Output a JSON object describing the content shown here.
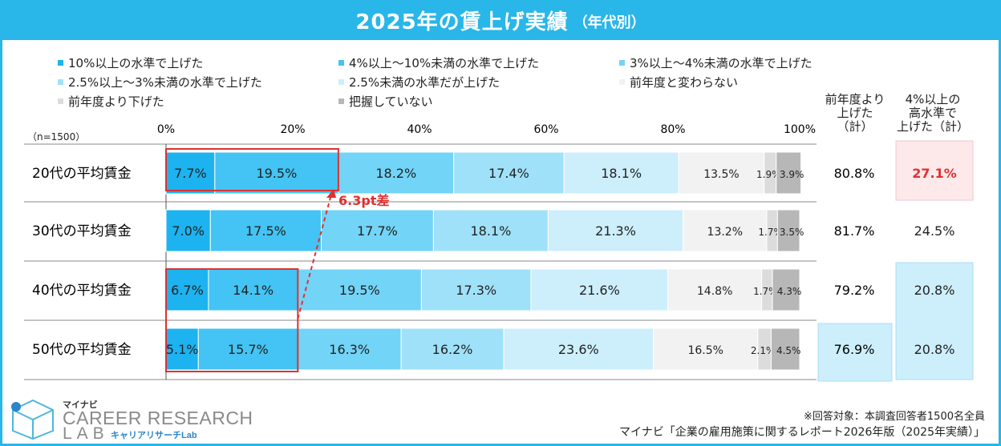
{
  "title": {
    "main": "2025年の賃上げ実績",
    "sub": "（年代別）"
  },
  "colors": {
    "accent": "#29b6e8",
    "seg": [
      "#1cb3f0",
      "#43c4f4",
      "#72d4f7",
      "#9fe1f9",
      "#cdeefb",
      "#f2f2f2",
      "#dcdcdc",
      "#b7b7b7"
    ],
    "highlight_red": "#e03030",
    "cell_pink": "#fde8ea",
    "cell_blue": "#cdeefb"
  },
  "legend": [
    "10%以上の水準で上げた",
    "4%以上～10%未満の水準で上げた",
    "3%以上～4%未満の水準で上げた",
    "2.5%以上～3%未満の水準で上げた",
    "2.5%未満の水準だが上げた",
    "前年度と変わらない",
    "前年度より下げた",
    "把握していない"
  ],
  "sample_label": "（n=1500）",
  "columns": {
    "raised_total": "前年度より上げた（計）",
    "raised_total_lines": [
      "前年度より",
      "上げた",
      "（計）"
    ],
    "high_total": "4%以上の高水準で上げた（計）",
    "high_total_lines": [
      "4%以上の",
      "高水準で",
      "上げた（計）"
    ]
  },
  "chart_data": {
    "type": "bar",
    "orientation": "horizontal-stacked-100",
    "title": "2025年の賃上げ実績（年代別）",
    "x_ticks": [
      "0%",
      "20%",
      "40%",
      "60%",
      "80%",
      "100%"
    ],
    "xlim": [
      0,
      100
    ],
    "categories": [
      "20代の平均賃金",
      "30代の平均賃金",
      "40代の平均賃金",
      "50代の平均賃金"
    ],
    "series": [
      {
        "name": "10%以上の水準で上げた",
        "values": [
          7.7,
          7.0,
          6.7,
          5.1
        ]
      },
      {
        "name": "4%以上～10%未満の水準で上げた",
        "values": [
          19.5,
          17.5,
          14.1,
          15.7
        ]
      },
      {
        "name": "3%以上～4%未満の水準で上げた",
        "values": [
          18.2,
          17.7,
          19.5,
          16.3
        ]
      },
      {
        "name": "2.5%以上～3%未満の水準で上げた",
        "values": [
          17.4,
          18.1,
          17.3,
          16.2
        ]
      },
      {
        "name": "2.5%未満の水準だが上げた",
        "values": [
          18.1,
          21.3,
          21.6,
          23.6
        ]
      },
      {
        "name": "前年度と変わらない",
        "values": [
          13.5,
          13.2,
          14.8,
          16.5
        ]
      },
      {
        "name": "前年度より下げた",
        "values": [
          1.9,
          1.7,
          1.7,
          2.1
        ]
      },
      {
        "name": "把握していない",
        "values": [
          3.9,
          3.5,
          4.3,
          4.5
        ]
      }
    ],
    "raised_total": [
      "80.8%",
      "81.7%",
      "79.2%",
      "76.9%"
    ],
    "high_total": [
      "27.1%",
      "24.5%",
      "20.8%",
      "20.8%"
    ],
    "annotation": "6.3pt差"
  },
  "footer": {
    "note": "※回答対象：本調査回答者1500名全員",
    "source": "マイナビ「企業の雇用施策に関するレポート2026年版（2025年実績）」"
  },
  "logo": {
    "top": "マイナビ",
    "line1": "CAREER RESEARCH",
    "line2": "LAB",
    "sub": "キャリアリサーチLab"
  }
}
